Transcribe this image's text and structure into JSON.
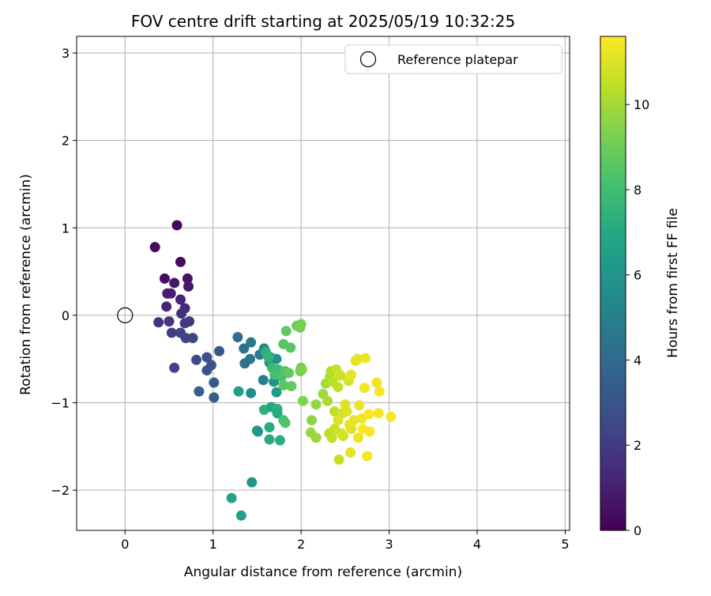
{
  "chart_data": {
    "type": "scatter",
    "title": "FOV centre drift starting at 2025/05/19 10:32:25",
    "xlabel": "Angular distance from reference (arcmin)",
    "ylabel": "Rotation from reference (arcmin)",
    "xlim": [
      -0.55,
      5.05
    ],
    "ylim": [
      -2.46,
      3.19
    ],
    "xticks": [
      0,
      1,
      2,
      3,
      4,
      5
    ],
    "xtick_labels": [
      "0",
      "1",
      "2",
      "3",
      "4",
      "5"
    ],
    "yticks": [
      -2,
      -1,
      0,
      1,
      2,
      3
    ],
    "ytick_labels": [
      "−2",
      "−1",
      "0",
      "1",
      "2",
      "3"
    ],
    "grid": true,
    "legend": {
      "position": "top-right",
      "entries": [
        "Reference platepar"
      ]
    },
    "reference_point": {
      "x": 0,
      "y": 0,
      "label": "Reference platepar"
    },
    "colorbar": {
      "label": "Hours from first FF file",
      "colormap": "viridis",
      "range": [
        0,
        11.6
      ],
      "ticks": [
        0,
        2,
        4,
        6,
        8,
        10
      ],
      "tick_labels": [
        "0",
        "2",
        "4",
        "6",
        "8",
        "10"
      ]
    },
    "points": [
      [
        0.59,
        1.03,
        0.2
      ],
      [
        0.34,
        0.78,
        0.3
      ],
      [
        0.63,
        0.61,
        0.4
      ],
      [
        0.45,
        0.42,
        0.5
      ],
      [
        0.71,
        0.42,
        0.6
      ],
      [
        0.56,
        0.37,
        0.7
      ],
      [
        0.72,
        0.33,
        0.8
      ],
      [
        0.48,
        0.25,
        0.9
      ],
      [
        0.52,
        0.25,
        1.0
      ],
      [
        0.63,
        0.18,
        1.1
      ],
      [
        0.47,
        0.1,
        1.2
      ],
      [
        0.68,
        0.08,
        1.4
      ],
      [
        0.64,
        0.02,
        1.6
      ],
      [
        0.38,
        -0.08,
        1.7
      ],
      [
        0.5,
        -0.07,
        1.8
      ],
      [
        0.73,
        -0.07,
        1.9
      ],
      [
        0.68,
        -0.09,
        2.0
      ],
      [
        0.53,
        -0.2,
        2.1
      ],
      [
        0.63,
        -0.2,
        2.2
      ],
      [
        0.69,
        -0.26,
        2.3
      ],
      [
        0.77,
        -0.26,
        2.4
      ],
      [
        0.56,
        -0.6,
        2.3
      ],
      [
        0.81,
        -0.51,
        2.7
      ],
      [
        0.93,
        -0.48,
        2.9
      ],
      [
        0.98,
        -0.57,
        3.0
      ],
      [
        0.93,
        -0.63,
        3.1
      ],
      [
        1.07,
        -0.41,
        3.2
      ],
      [
        1.01,
        -0.77,
        3.3
      ],
      [
        0.84,
        -0.87,
        3.4
      ],
      [
        1.01,
        -0.94,
        3.5
      ],
      [
        1.28,
        -0.25,
        4.2
      ],
      [
        1.35,
        -0.38,
        4.4
      ],
      [
        1.43,
        -0.31,
        4.6
      ],
      [
        1.42,
        -0.5,
        4.5
      ],
      [
        1.36,
        -0.55,
        4.3
      ],
      [
        1.53,
        -0.45,
        4.8
      ],
      [
        1.58,
        -0.38,
        5.2
      ],
      [
        1.65,
        -0.48,
        5.6
      ],
      [
        1.64,
        -0.54,
        5.7
      ],
      [
        1.72,
        -0.5,
        5.8
      ],
      [
        1.57,
        -0.74,
        5.0
      ],
      [
        1.69,
        -0.76,
        6.0
      ],
      [
        1.72,
        -0.88,
        6.3
      ],
      [
        1.29,
        -0.87,
        6.4
      ],
      [
        1.43,
        -0.89,
        5.6
      ],
      [
        1.58,
        -1.08,
        7.4
      ],
      [
        1.66,
        -1.05,
        6.8
      ],
      [
        1.73,
        -1.07,
        7.4
      ],
      [
        1.73,
        -1.12,
        7.0
      ],
      [
        1.8,
        -1.2,
        8.2
      ],
      [
        1.82,
        -1.23,
        8.4
      ],
      [
        1.64,
        -1.28,
        7.1
      ],
      [
        1.5,
        -1.32,
        5.8
      ],
      [
        1.51,
        -1.33,
        6.2
      ],
      [
        1.64,
        -1.42,
        7.2
      ],
      [
        1.76,
        -1.43,
        7.3
      ],
      [
        1.44,
        -1.91,
        6.0
      ],
      [
        1.21,
        -2.09,
        6.7
      ],
      [
        1.32,
        -2.29,
        6.5
      ],
      [
        1.6,
        -0.42,
        7.4
      ],
      [
        1.63,
        -0.48,
        7.6
      ],
      [
        1.67,
        -0.6,
        7.8
      ],
      [
        1.74,
        -0.62,
        8.0
      ],
      [
        1.7,
        -0.68,
        8.1
      ],
      [
        1.78,
        -0.7,
        8.2
      ],
      [
        1.82,
        -0.64,
        8.4
      ],
      [
        1.8,
        -0.8,
        8.6
      ],
      [
        1.86,
        -0.66,
        8.7
      ],
      [
        1.89,
        -0.81,
        8.8
      ],
      [
        1.8,
        -0.33,
        8.5
      ],
      [
        1.88,
        -0.37,
        8.6
      ],
      [
        1.83,
        -0.18,
        8.7
      ],
      [
        1.95,
        -0.12,
        9.0
      ],
      [
        1.99,
        -0.14,
        9.1
      ],
      [
        2.0,
        -0.1,
        9.2
      ],
      [
        2.0,
        -0.6,
        9.1
      ],
      [
        1.99,
        -0.64,
        9.2
      ],
      [
        2.01,
        -0.62,
        9.3
      ],
      [
        2.02,
        -0.98,
        9.4
      ],
      [
        2.12,
        -1.2,
        9.6
      ],
      [
        2.17,
        -1.02,
        9.7
      ],
      [
        2.11,
        -1.34,
        9.8
      ],
      [
        2.17,
        -1.4,
        9.8
      ],
      [
        2.25,
        -0.9,
        9.9
      ],
      [
        2.28,
        -0.78,
        10.0
      ],
      [
        2.3,
        -0.98,
        10.1
      ],
      [
        2.33,
        -0.7,
        10.2
      ],
      [
        2.34,
        -0.64,
        10.3
      ],
      [
        2.36,
        -0.76,
        10.4
      ],
      [
        2.32,
        -1.35,
        10.4
      ],
      [
        2.35,
        -1.4,
        10.5
      ],
      [
        2.38,
        -1.1,
        10.5
      ],
      [
        2.4,
        -0.62,
        10.6
      ],
      [
        2.42,
        -0.82,
        10.5
      ],
      [
        2.43,
        -1.65,
        10.6
      ],
      [
        2.45,
        -0.69,
        10.7
      ],
      [
        2.48,
        -1.38,
        10.8
      ],
      [
        2.47,
        -1.12,
        10.8
      ],
      [
        2.46,
        -1.35,
        10.9
      ],
      [
        2.5,
        -1.02,
        11.0
      ],
      [
        2.52,
        -1.1,
        11.0
      ],
      [
        2.54,
        -0.75,
        10.9
      ],
      [
        2.55,
        -1.25,
        11.1
      ],
      [
        2.57,
        -1.3,
        11.1
      ],
      [
        2.57,
        -0.68,
        11.2
      ],
      [
        2.62,
        -0.52,
        11.1
      ],
      [
        2.56,
        -1.57,
        11.2
      ],
      [
        2.64,
        -0.5,
        11.2
      ],
      [
        2.66,
        -1.03,
        11.3
      ],
      [
        2.65,
        -1.4,
        11.3
      ],
      [
        2.69,
        -1.18,
        11.4
      ],
      [
        2.72,
        -0.83,
        11.4
      ],
      [
        2.73,
        -0.49,
        11.3
      ],
      [
        2.75,
        -1.61,
        11.4
      ],
      [
        2.77,
        -1.13,
        11.5
      ],
      [
        2.78,
        -1.33,
        11.5
      ],
      [
        2.86,
        -0.77,
        11.3
      ],
      [
        2.88,
        -1.12,
        11.4
      ],
      [
        2.89,
        -0.87,
        11.4
      ],
      [
        3.02,
        -1.16,
        11.5
      ],
      [
        2.42,
        -1.2,
        11.0
      ],
      [
        2.38,
        -1.3,
        10.7
      ],
      [
        2.6,
        -1.2,
        11.2
      ],
      [
        2.7,
        -1.3,
        11.6
      ]
    ]
  }
}
